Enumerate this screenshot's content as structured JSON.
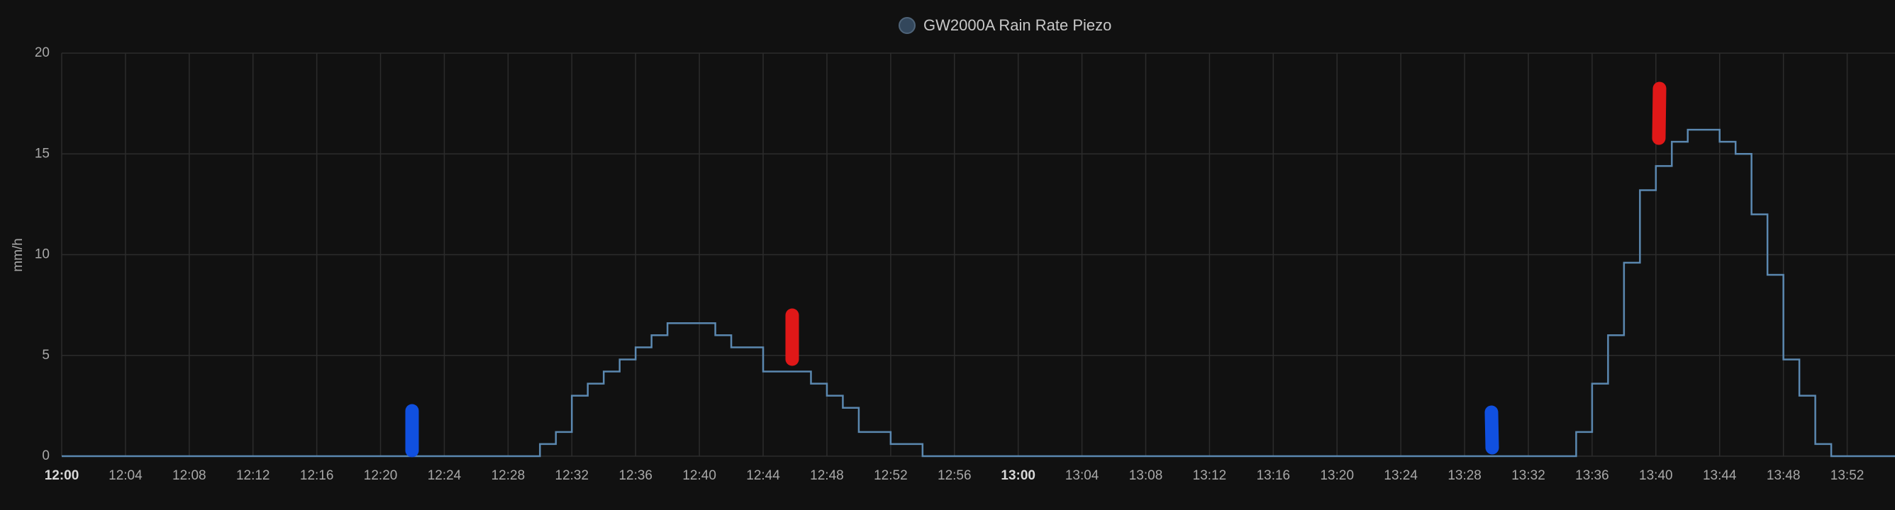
{
  "chart_data": {
    "type": "step",
    "legend_position": "top",
    "y_label": "mm/h",
    "series": [
      {
        "name": "GW2000A Rain Rate Piezo",
        "color": "#5b88b0",
        "x": [
          "12:00",
          "12:30",
          "12:31",
          "12:32",
          "12:33",
          "12:34",
          "12:35",
          "12:36",
          "12:37",
          "12:38",
          "12:41",
          "12:42",
          "12:44",
          "12:47",
          "12:48",
          "12:49",
          "12:50",
          "12:52",
          "12:54",
          "13:35",
          "13:36",
          "13:37",
          "13:38",
          "13:39",
          "13:40",
          "13:41",
          "13:42",
          "13:44",
          "13:45",
          "13:46",
          "13:47",
          "13:48",
          "13:49",
          "13:50",
          "13:51"
        ],
        "values": [
          0,
          0.6,
          1.2,
          3.0,
          3.6,
          4.2,
          4.8,
          5.4,
          6.0,
          6.6,
          6.0,
          5.4,
          4.2,
          3.6,
          3.0,
          2.4,
          1.2,
          0.6,
          0,
          1.2,
          3.6,
          6.0,
          9.6,
          13.2,
          14.4,
          15.6,
          16.2,
          15.6,
          15.0,
          12.0,
          9.0,
          4.8,
          3.0,
          0.6,
          0
        ]
      }
    ],
    "xlim": [
      "12:00",
      "13:55"
    ],
    "xticks": [
      "12:00",
      "12:04",
      "12:08",
      "12:12",
      "12:16",
      "12:20",
      "12:24",
      "12:28",
      "12:32",
      "12:36",
      "12:40",
      "12:44",
      "12:48",
      "12:52",
      "12:56",
      "13:00",
      "13:04",
      "13:08",
      "13:12",
      "13:16",
      "13:20",
      "13:24",
      "13:28",
      "13:32",
      "13:36",
      "13:40",
      "13:44",
      "13:48",
      "13:52"
    ],
    "ylim": [
      0,
      20
    ],
    "yticks": [
      0,
      5,
      10,
      15,
      20
    ],
    "grid": true
  }
}
